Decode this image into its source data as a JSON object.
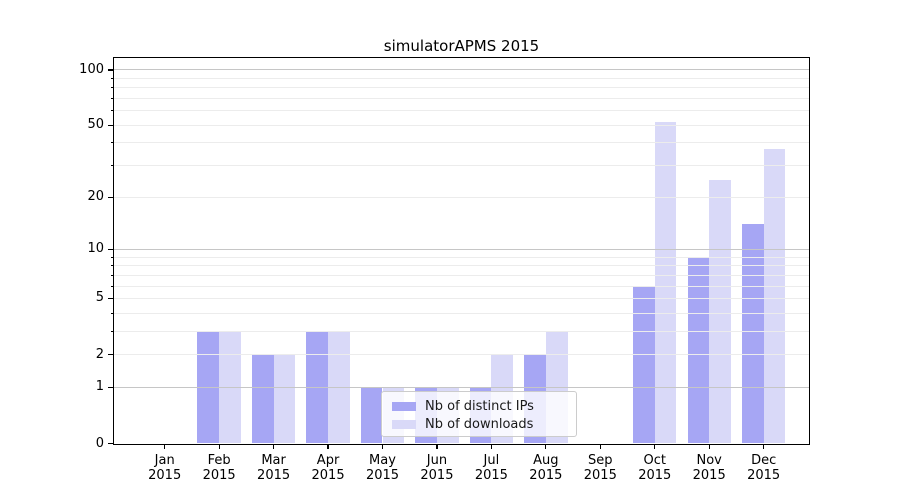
{
  "title": "simulatorAPMS 2015",
  "chart_data": {
    "type": "bar",
    "title": "simulatorAPMS 2015",
    "categories": [
      "Jan 2015",
      "Feb 2015",
      "Mar 2015",
      "Apr 2015",
      "May 2015",
      "Jun 2015",
      "Jul 2015",
      "Aug 2015",
      "Sep 2015",
      "Oct 2015",
      "Nov 2015",
      "Dec 2015"
    ],
    "category_line1": [
      "Jan",
      "Feb",
      "Mar",
      "Apr",
      "May",
      "Jun",
      "Jul",
      "Aug",
      "Sep",
      "Oct",
      "Nov",
      "Dec"
    ],
    "category_line2": [
      "2015",
      "2015",
      "2015",
      "2015",
      "2015",
      "2015",
      "2015",
      "2015",
      "2015",
      "2015",
      "2015",
      "2015"
    ],
    "series": [
      {
        "name": "Nb of distinct IPs",
        "color": "#a6a6f4",
        "values": [
          0,
          3,
          2,
          3,
          1,
          1,
          1,
          2,
          0,
          6,
          9,
          14
        ]
      },
      {
        "name": "Nb of downloads",
        "color": "#d9d9f8",
        "values": [
          0,
          3,
          2,
          3,
          1,
          1,
          2,
          3,
          0,
          52,
          25,
          37
        ]
      }
    ],
    "xlabel": "",
    "ylabel": "",
    "y_axis": {
      "scale": "log10(value+1)",
      "tick_values": [
        0,
        1,
        2,
        5,
        10,
        20,
        50,
        100
      ],
      "tick_labels": [
        "0",
        "1",
        "2",
        "5",
        "10",
        "20",
        "50",
        "100"
      ],
      "major_grid_values": [
        1,
        10,
        100
      ],
      "minor_grid_values": [
        2,
        3,
        4,
        5,
        6,
        7,
        8,
        9,
        20,
        30,
        40,
        50,
        60,
        70,
        80,
        90
      ],
      "ylim": [
        0,
        116
      ]
    },
    "grid": true,
    "legend_position": "lower center",
    "colors": {
      "major_grid": "#c6c6c6",
      "minor_grid": "#ececec",
      "spine": "#000000",
      "text": "#000000",
      "background": "#ffffff"
    }
  }
}
